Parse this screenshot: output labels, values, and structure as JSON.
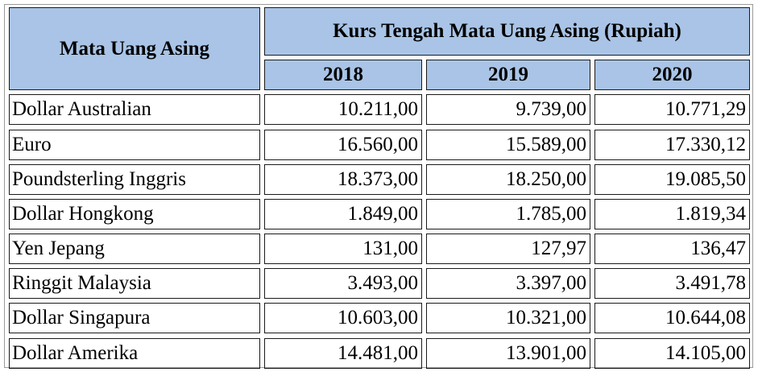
{
  "table": {
    "corner_header": "Mata Uang Asing",
    "group_header": "Kurs Tengah Mata Uang Asing (Rupiah)",
    "years": [
      "2018",
      "2019",
      "2020"
    ],
    "rows": [
      {
        "currency": "Dollar Australian",
        "values": [
          "10.211,00",
          "9.739,00",
          "10.771,29"
        ]
      },
      {
        "currency": "Euro",
        "values": [
          "16.560,00",
          "15.589,00",
          "17.330,12"
        ]
      },
      {
        "currency": "Poundsterling Inggris",
        "values": [
          "18.373,00",
          "18.250,00",
          "19.085,50"
        ]
      },
      {
        "currency": "Dollar Hongkong",
        "values": [
          "1.849,00",
          "1.785,00",
          "1.819,34"
        ]
      },
      {
        "currency": "Yen Jepang",
        "values": [
          "131,00",
          "127,97",
          "136,47"
        ]
      },
      {
        "currency": "Ringgit Malaysia",
        "values": [
          "3.493,00",
          "3.397,00",
          "3.491,78"
        ]
      },
      {
        "currency": "Dollar Singapura",
        "values": [
          "10.603,00",
          "10.321,00",
          "10.644,08"
        ]
      },
      {
        "currency": "Dollar Amerika",
        "values": [
          "14.481,00",
          "13.901,00",
          "14.105,00"
        ]
      }
    ]
  },
  "colors": {
    "header_fill": "#a9c4e6",
    "border": "#1a1a1a"
  }
}
